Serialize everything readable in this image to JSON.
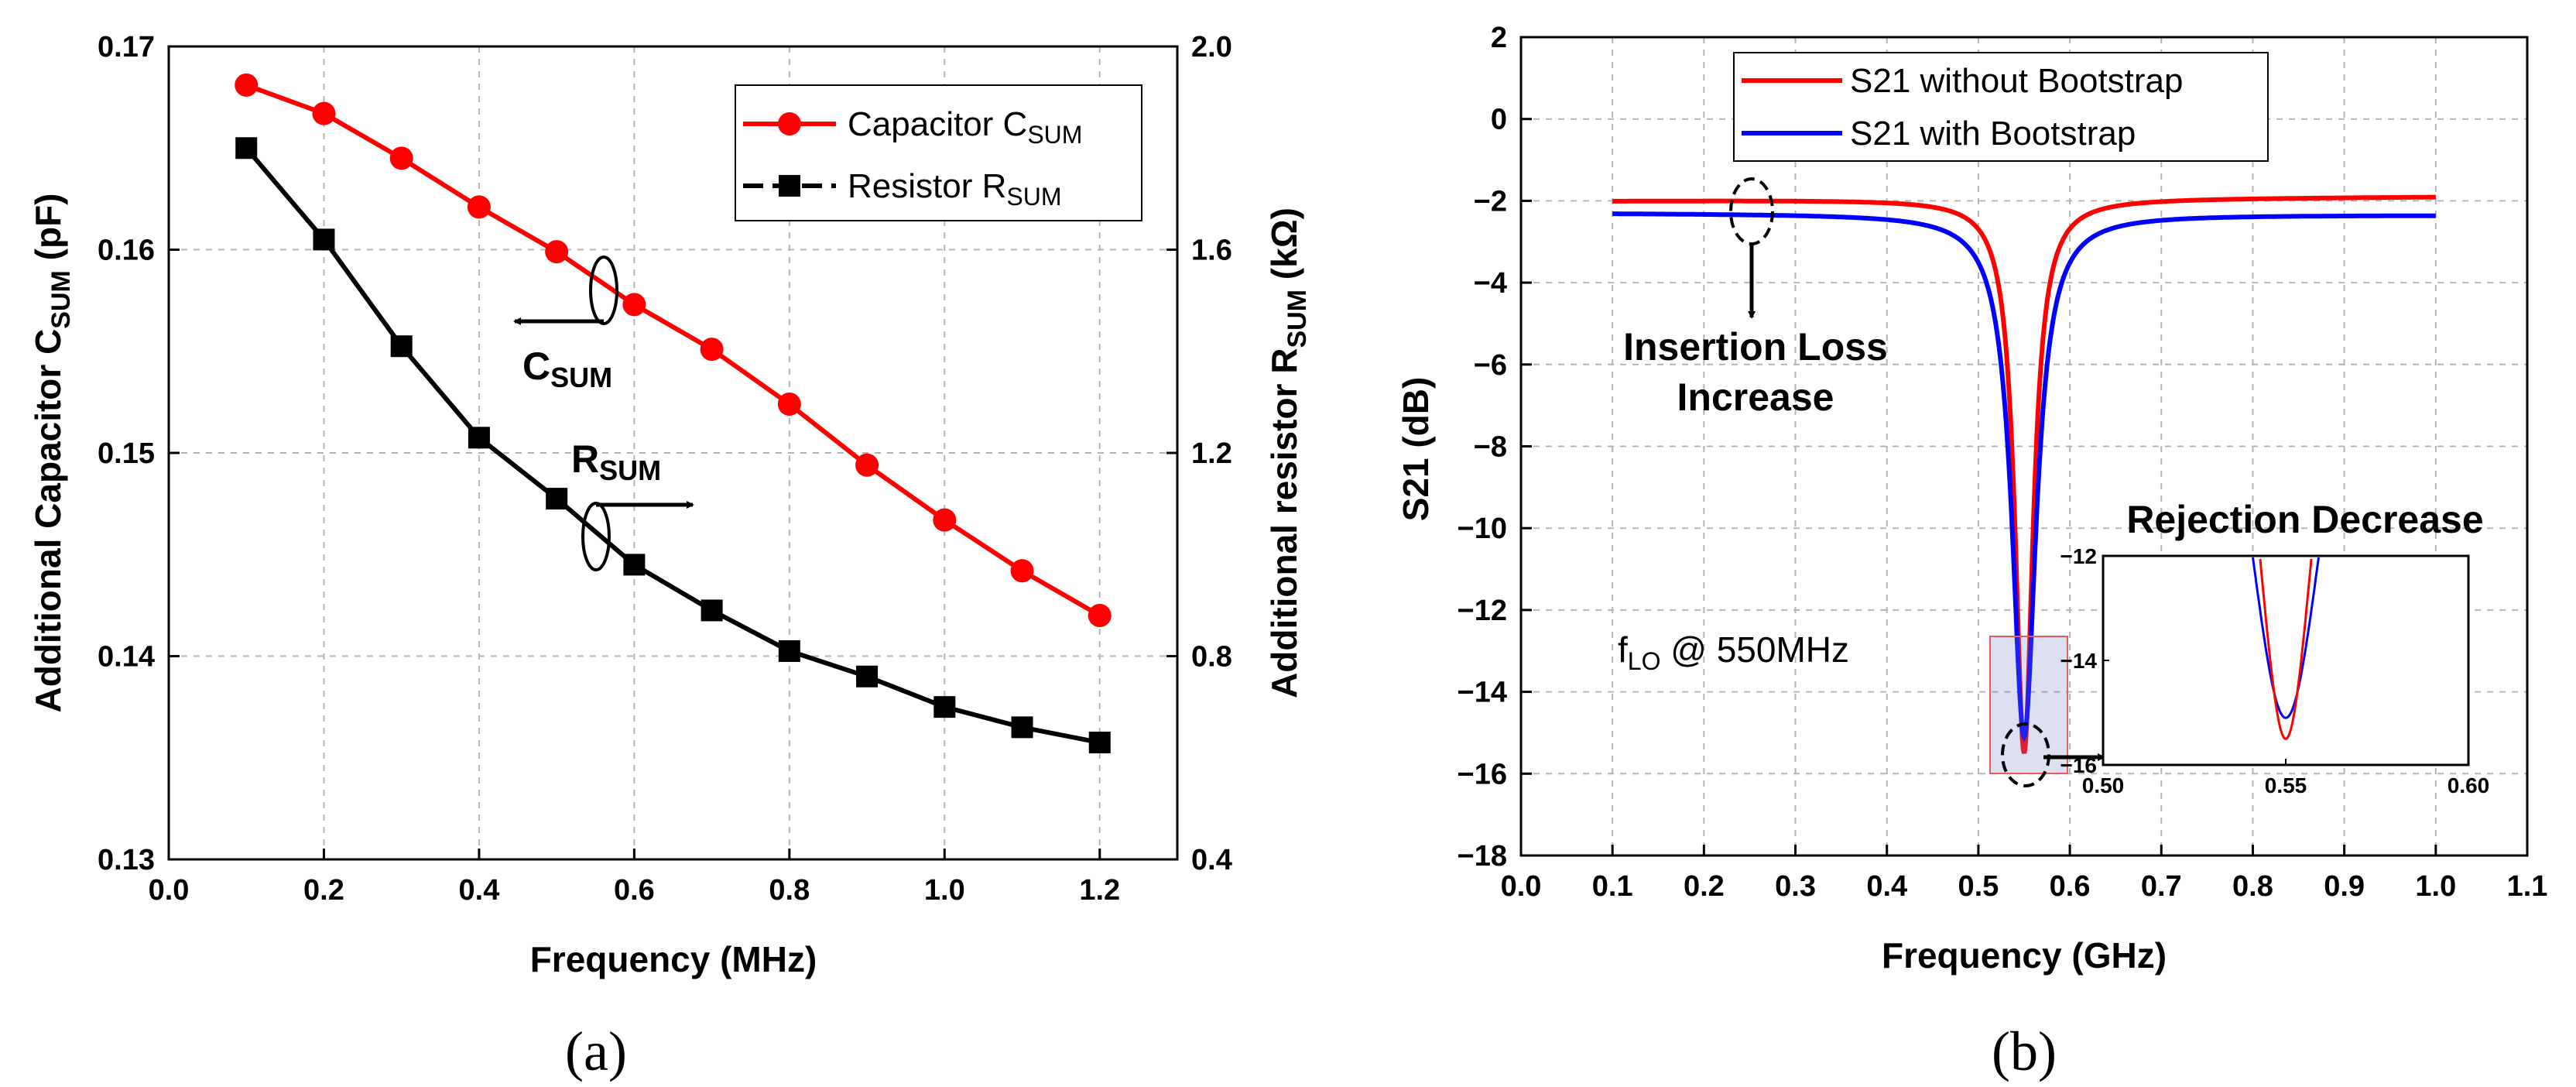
{
  "chart_data": [
    {
      "panel_label": "(a)",
      "type": "line",
      "xlabel": "Frequency (MHz)",
      "xlim": [
        0.0,
        1.3
      ],
      "xticks": [
        "0.0",
        "0.2",
        "0.4",
        "0.6",
        "0.8",
        "1.0",
        "1.2"
      ],
      "ylabel_left": {
        "main": "Additional Capacitor C",
        "sub": "SUM",
        "unit": " (pF)"
      },
      "ylim_left": [
        0.13,
        0.17
      ],
      "yticks_left": [
        "0.13",
        "0.14",
        "0.15",
        "0.16",
        "0.17"
      ],
      "ylabel_right": {
        "main": "Additional resistor R",
        "sub": "SUM",
        "unit": " (kΩ)"
      },
      "ylim_right": [
        0.4,
        2.0
      ],
      "yticks_right": [
        "0.4",
        "0.8",
        "1.2",
        "1.6",
        "2.0"
      ],
      "grid": true,
      "legend_position": "top-right",
      "x": [
        0.1,
        0.2,
        0.3,
        0.4,
        0.5,
        0.6,
        0.7,
        0.8,
        0.9,
        1.0,
        1.1,
        1.2
      ],
      "series": [
        {
          "name": "Capacitor C",
          "name_sub": "SUM",
          "axis": "left",
          "color": "#ff0000",
          "marker": "circle",
          "values": [
            0.1681,
            0.1667,
            0.1645,
            0.1621,
            0.1599,
            0.1573,
            0.1551,
            0.1524,
            0.1494,
            0.1467,
            0.1442,
            0.142
          ]
        },
        {
          "name": "Resistor R",
          "name_sub": "SUM",
          "axis": "right",
          "color": "#000000",
          "marker": "square",
          "values": [
            1.8,
            1.62,
            1.41,
            1.23,
            1.11,
            0.98,
            0.89,
            0.81,
            0.76,
            0.7,
            0.66,
            0.63
          ]
        }
      ],
      "annotations": [
        {
          "main": "C",
          "sub": "SUM",
          "direction": "left"
        },
        {
          "main": "R",
          "sub": "SUM",
          "direction": "right"
        }
      ]
    },
    {
      "panel_label": "(b)",
      "type": "line",
      "xlabel": "Frequency (GHz)",
      "ylabel": "S21 (dB)",
      "xlim": [
        0.0,
        1.1
      ],
      "xticks": [
        "0.0",
        "0.1",
        "0.2",
        "0.3",
        "0.4",
        "0.5",
        "0.6",
        "0.7",
        "0.8",
        "0.9",
        "1.0",
        "1.1"
      ],
      "ylim": [
        -18,
        2
      ],
      "yticks": [
        "2",
        "0",
        "-2",
        "-4",
        "-6",
        "-8",
        "-10",
        "-12",
        "-14",
        "-16",
        "-18"
      ],
      "grid": true,
      "legend_position": "top-left",
      "series": [
        {
          "name": "S21 without Bootstrap",
          "color": "#ff0000",
          "baseline_left": -2.0,
          "baseline_right": -1.9,
          "notch_center": 0.55,
          "notch_min": -15.5,
          "notch_width": 0.012
        },
        {
          "name": "S21 with Bootstrap",
          "color": "#0000ff",
          "baseline_left": -2.3,
          "baseline_right": -2.35,
          "notch_center": 0.55,
          "notch_min": -15.1,
          "notch_width": 0.016
        }
      ],
      "annotations": {
        "insertion_loss": [
          "Insertion Loss",
          "Increase"
        ],
        "rejection": "Rejection Decrease",
        "flo_main": "f",
        "flo_sub": "LO",
        "flo_rest": " @ 550MHz"
      },
      "inset": {
        "xlim": [
          0.5,
          0.6
        ],
        "ylim": [
          -16,
          -12
        ],
        "xticks": [
          "0.50",
          "0.55",
          "0.60"
        ],
        "yticks": [
          "-12",
          "-14",
          "-16"
        ]
      }
    }
  ]
}
